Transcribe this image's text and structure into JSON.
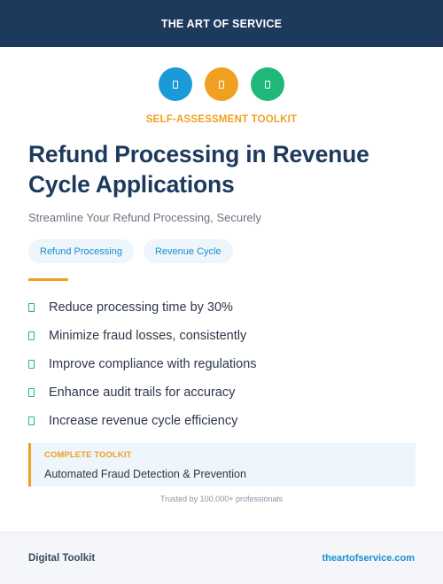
{
  "header": {
    "title": "THE ART OF SERVICE"
  },
  "icons": [
    {
      "name": "blue-circle-icon",
      "color": "#1a9ad9"
    },
    {
      "name": "orange-circle-icon",
      "color": "#f0a020"
    },
    {
      "name": "green-circle-icon",
      "color": "#1fb87a"
    }
  ],
  "eyebrow": "SELF-ASSESSMENT TOOLKIT",
  "title_line1": "Refund Processing in Revenue",
  "title_line2": "Cycle Applications",
  "subtitle": "Streamline Your Refund Processing, Securely",
  "tags": [
    "Refund Processing",
    "Revenue Cycle"
  ],
  "benefits": [
    "Reduce processing time by 30%",
    "Minimize fraud losses, consistently",
    "Improve compliance with regulations",
    "Enhance audit trails for accuracy",
    "Increase revenue cycle efficiency"
  ],
  "callout": {
    "label": "COMPLETE TOOLKIT",
    "text": "Automated Fraud Detection & Prevention"
  },
  "trusted": "Trusted by 100,000+ professionals",
  "footer": {
    "left": "Digital Toolkit",
    "right": "theartofservice.com"
  },
  "colors": {
    "navy": "#1d3a5c",
    "accent_orange": "#f0a020",
    "accent_blue": "#1a8fd0",
    "accent_green": "#1fb87a"
  }
}
